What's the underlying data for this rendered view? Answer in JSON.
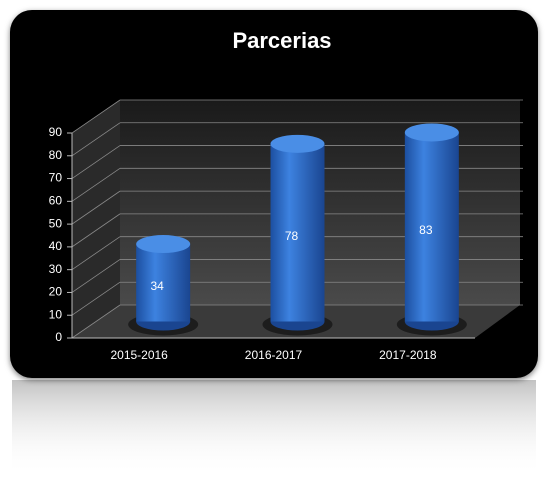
{
  "chart_data": {
    "type": "bar",
    "title": "Parcerias",
    "categories": [
      "2015-2016",
      "2016-2017",
      "2017-2018"
    ],
    "values": [
      34,
      78,
      83
    ],
    "color": "#2f6fcf",
    "ylim": [
      0,
      90
    ],
    "yticks": [
      0,
      10,
      20,
      30,
      40,
      50,
      60,
      70,
      80,
      90
    ],
    "grid": true
  }
}
